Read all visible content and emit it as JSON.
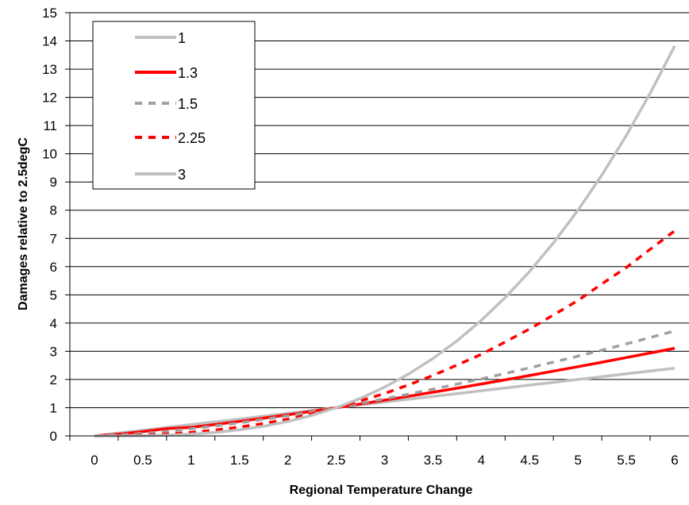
{
  "chart_data": {
    "type": "line",
    "xlabel": "Regional Temperature Change",
    "ylabel": "Damages relative to 2.5degC",
    "xlim": [
      0,
      6
    ],
    "ylim": [
      0,
      15
    ],
    "x_ticks": [
      "0",
      "0.5",
      "1",
      "1.5",
      "2",
      "2.5",
      "3",
      "3.5",
      "4",
      "4.5",
      "5",
      "5.5",
      "6"
    ],
    "y_ticks": [
      "0",
      "1",
      "2",
      "3",
      "4",
      "5",
      "6",
      "7",
      "8",
      "9",
      "10",
      "11",
      "12",
      "13",
      "14",
      "15"
    ],
    "grid": "horizontal",
    "legend_position": "top-left",
    "x": [
      0,
      0.25,
      0.5,
      0.75,
      1,
      1.25,
      1.5,
      1.75,
      2,
      2.25,
      2.5,
      2.75,
      3,
      3.25,
      3.5,
      3.75,
      4,
      4.25,
      4.5,
      4.75,
      5,
      5.25,
      5.5,
      5.75,
      6
    ],
    "series": [
      {
        "name": "1",
        "color": "#c0c0c0",
        "dash": "solid",
        "values": [
          0,
          0.1,
          0.2,
          0.3,
          0.4,
          0.5,
          0.6,
          0.7,
          0.8,
          0.9,
          1.0,
          1.1,
          1.2,
          1.3,
          1.4,
          1.5,
          1.6,
          1.7,
          1.8,
          1.9,
          2.0,
          2.1,
          2.2,
          2.3,
          2.4
        ]
      },
      {
        "name": "1.3",
        "color": "#ff0000",
        "dash": "solid",
        "values": [
          0,
          0.061,
          0.151,
          0.26,
          0.304,
          0.405,
          0.514,
          0.63,
          0.748,
          0.872,
          1.0,
          1.132,
          1.267,
          1.406,
          1.548,
          1.692,
          1.84,
          1.99,
          2.143,
          2.298,
          2.455,
          2.615,
          2.777,
          2.94,
          3.106
        ]
      },
      {
        "name": "1.5",
        "color": "#a0a0a0",
        "dash": "dashed",
        "values": [
          0,
          0.04,
          0.089,
          0.164,
          0.253,
          0.354,
          0.465,
          0.586,
          0.716,
          0.854,
          1.0,
          1.154,
          1.315,
          1.483,
          1.657,
          1.839,
          2.024,
          2.216,
          2.415,
          2.619,
          2.828,
          3.043,
          3.263,
          3.489,
          3.718
        ]
      },
      {
        "name": "2.25",
        "color": "#ff0000",
        "dash": "dashed",
        "values": [
          0,
          0.006,
          0.028,
          0.071,
          0.126,
          0.208,
          0.313,
          0.442,
          0.594,
          0.788,
          1.0,
          1.245,
          1.504,
          1.813,
          2.141,
          2.514,
          2.89,
          3.334,
          3.795,
          4.295,
          4.8,
          5.395,
          5.973,
          6.624,
          7.269
        ]
      },
      {
        "name": "3",
        "color": "#c0c0c0",
        "dash": "solid",
        "values": [
          0,
          0.001,
          0.008,
          0.027,
          0.064,
          0.125,
          0.216,
          0.343,
          0.512,
          0.729,
          1.0,
          1.331,
          1.728,
          2.197,
          2.744,
          3.375,
          4.096,
          4.913,
          5.832,
          6.859,
          8.0,
          9.261,
          10.648,
          12.167,
          13.824
        ]
      }
    ]
  }
}
